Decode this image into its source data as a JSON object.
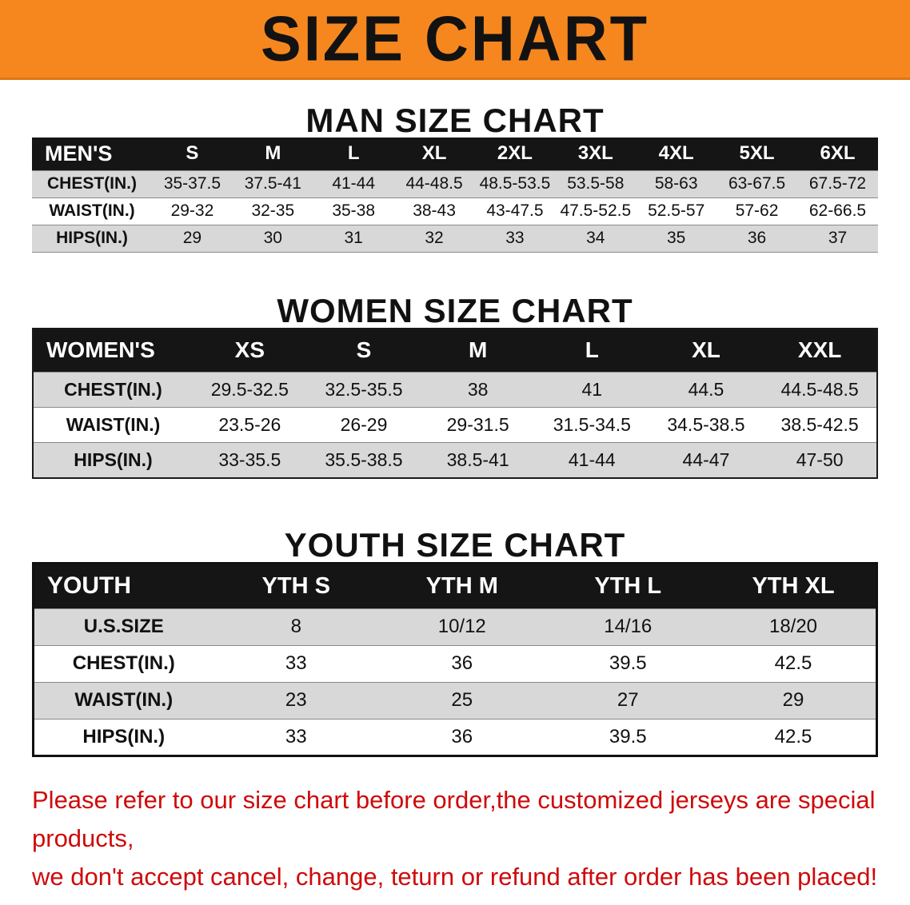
{
  "banner": {
    "title": "SIZE CHART",
    "bg_color": "#F6871F",
    "text_color": "#121212"
  },
  "man_chart": {
    "title": "MAN SIZE CHART",
    "table": {
      "header": [
        "MEN'S",
        "S",
        "M",
        "L",
        "XL",
        "2XL",
        "3XL",
        "4XL",
        "5XL",
        "6XL"
      ],
      "rows": [
        {
          "label": "CHEST(IN.)",
          "values": [
            "35-37.5",
            "37.5-41",
            "41-44",
            "44-48.5",
            "48.5-53.5",
            "53.5-58",
            "58-63",
            "63-67.5",
            "67.5-72"
          ]
        },
        {
          "label": "WAIST(IN.)",
          "values": [
            "29-32",
            "32-35",
            "35-38",
            "38-43",
            "43-47.5",
            "47.5-52.5",
            "52.5-57",
            "57-62",
            "62-66.5"
          ]
        },
        {
          "label": "HIPS(IN.)",
          "values": [
            "29",
            "30",
            "31",
            "32",
            "33",
            "34",
            "35",
            "36",
            "37"
          ]
        }
      ]
    }
  },
  "women_chart": {
    "title": "WOMEN SIZE CHART",
    "table": {
      "header": [
        "WOMEN'S",
        "XS",
        "S",
        "M",
        "L",
        "XL",
        "XXL"
      ],
      "rows": [
        {
          "label": "CHEST(IN.)",
          "values": [
            "29.5-32.5",
            "32.5-35.5",
            "38",
            "41",
            "44.5",
            "44.5-48.5"
          ]
        },
        {
          "label": "WAIST(IN.)",
          "values": [
            "23.5-26",
            "26-29",
            "29-31.5",
            "31.5-34.5",
            "34.5-38.5",
            "38.5-42.5"
          ]
        },
        {
          "label": "HIPS(IN.)",
          "values": [
            "33-35.5",
            "35.5-38.5",
            "38.5-41",
            "41-44",
            "44-47",
            "47-50"
          ]
        }
      ]
    }
  },
  "youth_chart": {
    "title": "YOUTH SIZE CHART",
    "table": {
      "header": [
        "YOUTH",
        "YTH S",
        "YTH M",
        "YTH L",
        "YTH XL"
      ],
      "rows": [
        {
          "label": "U.S.SIZE",
          "values": [
            "8",
            "10/12",
            "14/16",
            "18/20"
          ]
        },
        {
          "label": "CHEST(IN.)",
          "values": [
            "33",
            "36",
            "39.5",
            "42.5"
          ]
        },
        {
          "label": "WAIST(IN.)",
          "values": [
            "23",
            "25",
            "27",
            "29"
          ]
        },
        {
          "label": "HIPS(IN.)",
          "values": [
            "33",
            "36",
            "39.5",
            "42.5"
          ]
        }
      ]
    }
  },
  "footer": {
    "line1": "Please refer to our size chart before order,the customized jerseys are special products,",
    "line2": "we don't accept cancel, change, teturn or refund after order has been placed!",
    "text_color": "#cf0a0a"
  }
}
